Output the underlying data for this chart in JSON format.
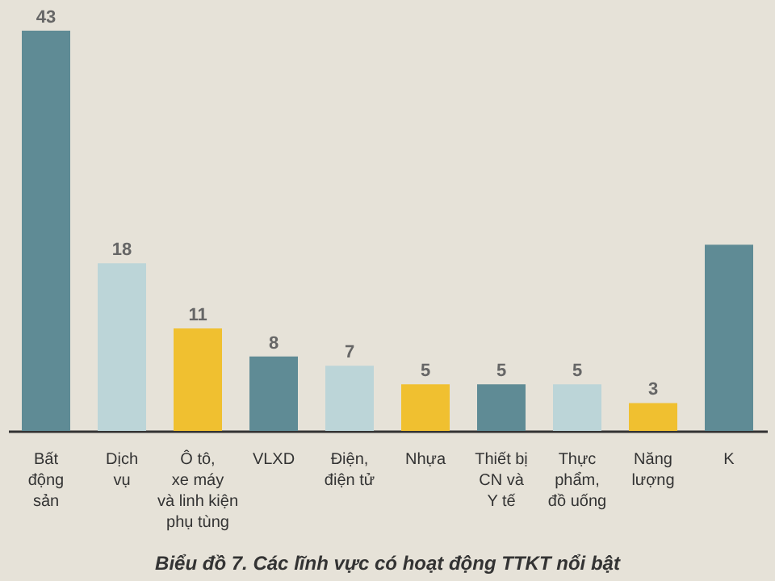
{
  "chart_data": {
    "type": "bar",
    "title": "Biểu đồ 7. Các lĩnh vực có hoạt động TTKT nổi bật",
    "categories": [
      "Bất\nđộng\nsản",
      "Dịch\nvụ",
      "Ô tô,\nxe máy\nvà linh kiện\nphụ tùng",
      "VLXD",
      "Điện,\nđiện tử",
      "Nhựa",
      "Thiết bị\nCN và\nY tế",
      "Thực\nphẩm,\nđồ uống",
      "Năng\nlượng",
      "K"
    ],
    "values": [
      43,
      18,
      11,
      8,
      7,
      5,
      5,
      5,
      3,
      20
    ],
    "value_labels": [
      "43",
      "18",
      "11",
      "8",
      "7",
      "5",
      "5",
      "5",
      "3",
      null
    ],
    "colors": [
      "#5f8b95",
      "#bcd5d8",
      "#f0c030",
      "#5f8b95",
      "#bcd5d8",
      "#f0c030",
      "#5f8b95",
      "#bcd5d8",
      "#f0c030",
      "#5f8b95"
    ],
    "grid": false
  }
}
